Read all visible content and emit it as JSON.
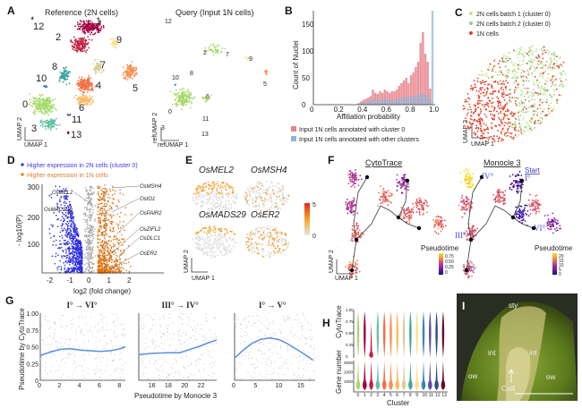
{
  "panels": {
    "A": {
      "letter": "A",
      "reference_title": "Reference (2N cells)",
      "query_title": "Query (Input 1N cells)",
      "ref_xlabel": "UMAP 1",
      "ref_ylabel": "UMAP 2",
      "query_xlabel": "refUMAP 1",
      "query_ylabel": "refUMAP 2",
      "cluster_labels": [
        "0",
        "1",
        "2",
        "3",
        "4",
        "5",
        "6",
        "7",
        "8",
        "9",
        "10",
        "11",
        "12",
        "13"
      ],
      "cluster_colors": [
        "#a6d96a",
        "#9e0142",
        "#c2223f",
        "#66c2a5",
        "#f46d43",
        "#fb8f4f",
        "#fdb863",
        "#d9cf9a",
        "#3aa6a0",
        "#fee08b",
        "#3288bd",
        "#5e4fa2",
        "#2b4d8c",
        "#6b0a2e"
      ]
    },
    "B": {
      "letter": "B",
      "legend": [
        "Input 1N cells annotated with cluster 0",
        "Input 1N cells annotated with other clusters"
      ],
      "colors": [
        "#e8828a",
        "#8fb3d9"
      ]
    },
    "C": {
      "letter": "C",
      "legend": [
        "2N cells batch 1 (cluster 0)",
        "2N cells batch 2 (cluster 0)",
        "1N cells"
      ],
      "colors": [
        "#c5e38a",
        "#8fd18f",
        "#e2402a"
      ],
      "xlabel": "UMAP 1",
      "ylabel": "UMAP 2"
    },
    "D": {
      "letter": "D",
      "legend": [
        "Higher expression in 2N cells (cluster 0)",
        "Higher expression in 1N cells"
      ],
      "colors": [
        "#2a2ae0",
        "#e0720f"
      ],
      "ylabel": "- log10(P)",
      "xlabel": "log2 (fold change)",
      "yticks": [
        "100",
        "200",
        "300"
      ],
      "xticks": [
        "-2",
        "-1",
        "0",
        "1",
        "2"
      ],
      "genes_left": [
        "OsMEL2",
        "OsMADS29"
      ],
      "genes_right": [
        "OsMSH4",
        "OsIG1",
        "OsPAIR2",
        "OsZIFL2",
        "OsDLC1",
        "OsER2"
      ]
    },
    "E": {
      "letter": "E",
      "genes": [
        "OsMEL2",
        "OsMSH4",
        "OsMADS29",
        "OsER2"
      ],
      "scale_max": "5",
      "scale_min": "0",
      "xlabel": "UMAP 1",
      "ylabel": "UMAP 2"
    },
    "F": {
      "letter": "F",
      "titles": [
        "CytoTrace",
        "Monocle 3"
      ],
      "legend_title": "Pseudotime",
      "cytotrace_ticks": [
        "0.75",
        "0.50",
        "0.25",
        "0"
      ],
      "monocle_ticks": [
        "20",
        "15",
        "10",
        "5",
        "0"
      ],
      "start_label": "Start",
      "nodes": [
        "I°",
        "II°",
        "III°",
        "IV°",
        "V°",
        "VI°"
      ],
      "xlabel": "UMAP 1",
      "ylabel": "UMAP 2"
    },
    "G": {
      "letter": "G",
      "titles": [
        "I° → VI°",
        "III° → IV°",
        "I° → V°"
      ],
      "ylabel": "Pseudotime by CytoTrace",
      "xlabel": "Pseudotime by Monocle 3",
      "yticks": [
        "0",
        "0.25",
        "0.50",
        "0.75",
        "1.00"
      ],
      "xticks": [
        [
          "0",
          "2",
          "4",
          "6",
          "8"
        ],
        [
          "16",
          "18",
          "20",
          "22"
        ],
        [
          "0",
          "5",
          "10",
          "15"
        ]
      ],
      "line_color": "#5b8fe0"
    },
    "H": {
      "letter": "H",
      "ylabel_top": "CytoTrace",
      "ylabel_bottom": "Gene number",
      "xlabel": "Cluster",
      "yticks_top": [
        "0",
        "0.25",
        "0.50",
        "0.75",
        "1.00"
      ],
      "yticks_bottom": [
        "1000",
        "2000",
        "3000"
      ]
    },
    "I": {
      "letter": "I",
      "labels": [
        "sty",
        "int",
        "int",
        "ow",
        "ow",
        "Calli"
      ]
    }
  },
  "chart_data": [
    {
      "type": "bar",
      "panel": "B",
      "xlabel": "Affiliation probability",
      "ylabel": "Count of Nuclei",
      "xlim": [
        0,
        1.0
      ],
      "ylim": [
        0,
        175
      ],
      "xticks": [
        "0",
        "0.2",
        "0.4",
        "0.6",
        "0.8",
        "1.0"
      ],
      "yticks": [
        "0",
        "50",
        "100",
        "150"
      ],
      "x": [
        0.38,
        0.4,
        0.42,
        0.44,
        0.46,
        0.48,
        0.5,
        0.52,
        0.54,
        0.56,
        0.58,
        0.6,
        0.62,
        0.64,
        0.66,
        0.68,
        0.7,
        0.72,
        0.74,
        0.76,
        0.78,
        0.8,
        0.82,
        0.84,
        0.86,
        0.88,
        0.9,
        0.92,
        0.94,
        0.96,
        0.98,
        1.0
      ],
      "series": [
        {
          "name": "Input 1N cells annotated with cluster 0",
          "values": [
            3,
            6,
            9,
            11,
            13,
            16,
            28,
            22,
            20,
            25,
            22,
            28,
            25,
            22,
            25,
            25,
            28,
            35,
            40,
            45,
            50,
            40,
            55,
            60,
            70,
            80,
            115,
            135,
            95,
            80,
            30,
            0
          ]
        },
        {
          "name": "Input 1N cells annotated with other clusters",
          "values": [
            2,
            3,
            4,
            5,
            6,
            8,
            12,
            10,
            9,
            10,
            9,
            12,
            10,
            9,
            10,
            10,
            11,
            12,
            14,
            14,
            15,
            13,
            16,
            16,
            18,
            18,
            20,
            22,
            18,
            16,
            10,
            175
          ]
        }
      ]
    },
    {
      "type": "line",
      "panel": "G",
      "series": [
        {
          "x": [
            0,
            1,
            2,
            3,
            4,
            5,
            6,
            7,
            8,
            8.5
          ],
          "y": [
            0.37,
            0.42,
            0.46,
            0.47,
            0.45,
            0.44,
            0.43,
            0.44,
            0.47,
            0.5
          ]
        },
        {
          "x": [
            14.5,
            16,
            18,
            19.5,
            20,
            21,
            22,
            23,
            24
          ],
          "y": [
            0.38,
            0.4,
            0.41,
            0.41,
            0.43,
            0.47,
            0.51,
            0.56,
            0.6
          ]
        },
        {
          "x": [
            0,
            2,
            4,
            6,
            8,
            10,
            12,
            14,
            16,
            18
          ],
          "y": [
            0.33,
            0.45,
            0.55,
            0.61,
            0.63,
            0.61,
            0.55,
            0.47,
            0.39,
            0.3
          ]
        }
      ]
    }
  ]
}
